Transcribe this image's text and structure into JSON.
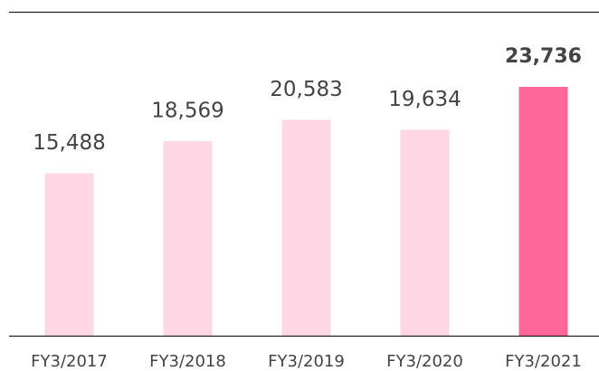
{
  "chart_data": {
    "type": "bar",
    "categories": [
      "FY3/2017",
      "FY3/2018",
      "FY3/2019",
      "FY3/2020",
      "FY3/2021"
    ],
    "values": [
      15488,
      18569,
      20583,
      19634,
      23736
    ],
    "value_labels": [
      "15,488",
      "18,569",
      "20,583",
      "19,634",
      "23,736"
    ],
    "colors": [
      "#ffd6e3",
      "#ffd6e3",
      "#ffd6e3",
      "#ffd6e3",
      "#ff6699"
    ],
    "bold_labels": [
      false,
      false,
      false,
      false,
      true
    ],
    "ylim": [
      0,
      30900
    ]
  }
}
